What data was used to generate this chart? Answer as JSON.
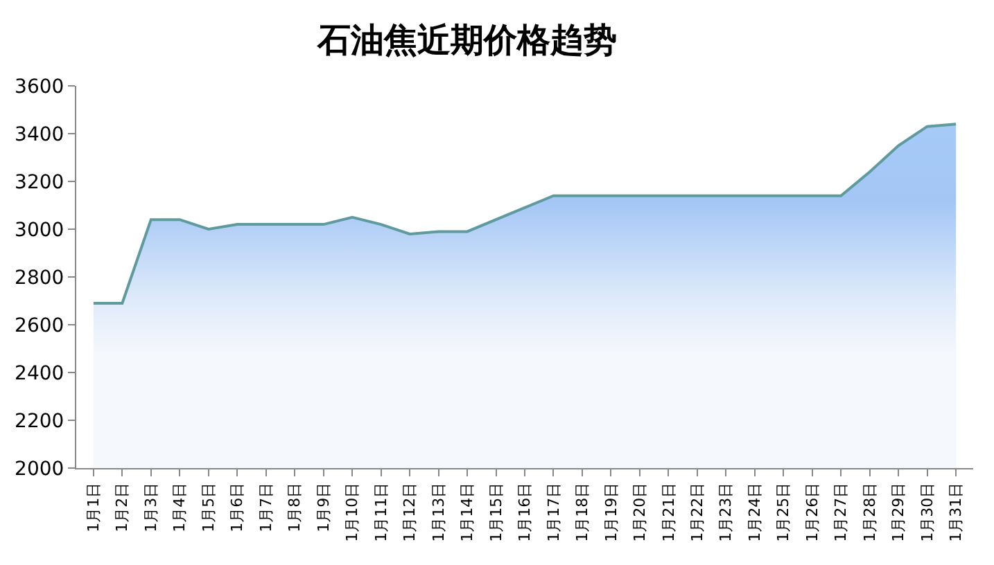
{
  "chart_data": {
    "type": "area",
    "title": "石油焦近期价格趋势",
    "categories": [
      "1月1日",
      "1月2日",
      "1月3日",
      "1月4日",
      "1月5日",
      "1月6日",
      "1月7日",
      "1月8日",
      "1月9日",
      "1月10日",
      "1月11日",
      "1月12日",
      "1月13日",
      "1月14日",
      "1月15日",
      "1月16日",
      "1月17日",
      "1月18日",
      "1月19日",
      "1月20日",
      "1月21日",
      "1月22日",
      "1月23日",
      "1月24日",
      "1月25日",
      "1月26日",
      "1月27日",
      "1月28日",
      "1月29日",
      "1月30日",
      "1月31日"
    ],
    "series": [
      {
        "color": "#5f9a9c",
        "values": [
          2690,
          2690,
          3040,
          3040,
          3000,
          3020,
          3020,
          3020,
          3020,
          3050,
          3020,
          2980,
          2990,
          2990,
          3040,
          3090,
          3140,
          3140,
          3140,
          3140,
          3140,
          3140,
          3140,
          3140,
          3140,
          3140,
          3140,
          3240,
          3350,
          3430,
          3440
        ]
      }
    ],
    "ylim": [
      2000,
      3600
    ],
    "yticks": [
      2000,
      2200,
      2400,
      2600,
      2800,
      3000,
      3200,
      3400,
      3600
    ],
    "grid": false
  }
}
